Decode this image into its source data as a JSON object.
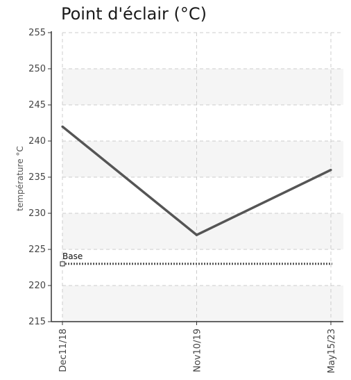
{
  "chart_data": {
    "type": "line",
    "title": "Point d'éclair (°C)",
    "ylabel": "température °C",
    "xlabel": "",
    "ylim": [
      215,
      255
    ],
    "yticks": [
      215,
      220,
      225,
      230,
      235,
      240,
      245,
      250,
      255
    ],
    "categories": [
      "Dec11/18",
      "Nov10/19",
      "May15/23"
    ],
    "series": [
      {
        "values": [
          242,
          227,
          236
        ],
        "color": "#555555",
        "style": "solid"
      }
    ],
    "reference_lines": [
      {
        "name": "Base",
        "value": 223,
        "color": "#555555",
        "style": "dotted"
      }
    ],
    "grid": true,
    "band_color": "#f5f5f5"
  }
}
